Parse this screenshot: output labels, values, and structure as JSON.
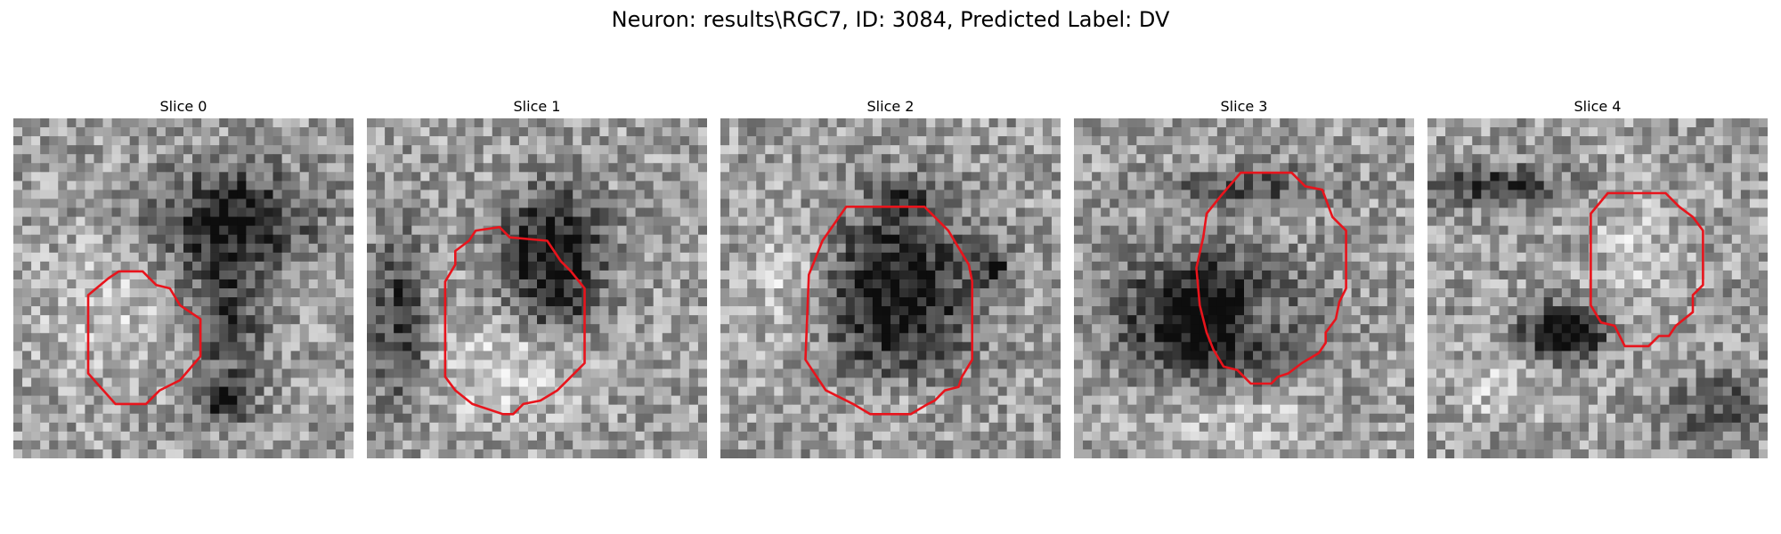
{
  "figure": {
    "title": "Neuron: results\\RGC7, ID: 3084, Predicted Label: DV"
  },
  "colors": {
    "contour": "#e8141c",
    "background": "#ffffff"
  },
  "panels": [
    {
      "title": "Slice 0",
      "seed": 11,
      "dark_blobs": [
        [
          0.65,
          0.3,
          0.22,
          0.15,
          0.55
        ],
        [
          0.62,
          0.6,
          0.12,
          0.2,
          0.35
        ],
        [
          0.63,
          0.83,
          0.07,
          0.06,
          0.5
        ]
      ],
      "light_blobs": [
        [
          0.28,
          0.58,
          0.2,
          0.2,
          0.15
        ]
      ],
      "contour": [
        [
          0.31,
          0.45
        ],
        [
          0.38,
          0.45
        ],
        [
          0.42,
          0.49
        ],
        [
          0.46,
          0.5
        ],
        [
          0.49,
          0.55
        ],
        [
          0.55,
          0.59
        ],
        [
          0.55,
          0.7
        ],
        [
          0.49,
          0.77
        ],
        [
          0.43,
          0.8
        ],
        [
          0.39,
          0.84
        ],
        [
          0.3,
          0.84
        ],
        [
          0.22,
          0.75
        ],
        [
          0.22,
          0.52
        ],
        [
          0.28,
          0.47
        ]
      ]
    },
    {
      "title": "Slice 1",
      "seed": 23,
      "dark_blobs": [
        [
          0.55,
          0.38,
          0.15,
          0.16,
          0.6
        ],
        [
          0.1,
          0.6,
          0.08,
          0.25,
          0.4
        ],
        [
          0.55,
          0.55,
          0.1,
          0.08,
          0.3
        ]
      ],
      "light_blobs": [
        [
          0.4,
          0.75,
          0.2,
          0.15,
          0.2
        ]
      ],
      "contour": [
        [
          0.32,
          0.33
        ],
        [
          0.39,
          0.32
        ],
        [
          0.42,
          0.35
        ],
        [
          0.53,
          0.36
        ],
        [
          0.57,
          0.42
        ],
        [
          0.6,
          0.45
        ],
        [
          0.64,
          0.5
        ],
        [
          0.64,
          0.72
        ],
        [
          0.56,
          0.8
        ],
        [
          0.51,
          0.83
        ],
        [
          0.46,
          0.84
        ],
        [
          0.43,
          0.87
        ],
        [
          0.4,
          0.87
        ],
        [
          0.31,
          0.84
        ],
        [
          0.26,
          0.8
        ],
        [
          0.23,
          0.76
        ],
        [
          0.23,
          0.48
        ],
        [
          0.26,
          0.43
        ],
        [
          0.26,
          0.39
        ],
        [
          0.3,
          0.36
        ]
      ]
    },
    {
      "title": "Slice 2",
      "seed": 37,
      "dark_blobs": [
        [
          0.52,
          0.52,
          0.22,
          0.24,
          0.6
        ],
        [
          0.8,
          0.43,
          0.05,
          0.05,
          0.4
        ],
        [
          0.56,
          0.23,
          0.1,
          0.06,
          0.3
        ]
      ],
      "light_blobs": [
        [
          0.2,
          0.5,
          0.12,
          0.2,
          0.2
        ],
        [
          0.5,
          0.83,
          0.15,
          0.06,
          0.2
        ]
      ],
      "contour": [
        [
          0.37,
          0.26
        ],
        [
          0.6,
          0.26
        ],
        [
          0.63,
          0.29
        ],
        [
          0.67,
          0.33
        ],
        [
          0.7,
          0.38
        ],
        [
          0.73,
          0.43
        ],
        [
          0.74,
          0.48
        ],
        [
          0.74,
          0.71
        ],
        [
          0.71,
          0.76
        ],
        [
          0.7,
          0.79
        ],
        [
          0.66,
          0.8
        ],
        [
          0.63,
          0.83
        ],
        [
          0.61,
          0.84
        ],
        [
          0.56,
          0.87
        ],
        [
          0.44,
          0.87
        ],
        [
          0.39,
          0.84
        ],
        [
          0.31,
          0.8
        ],
        [
          0.27,
          0.74
        ],
        [
          0.25,
          0.71
        ],
        [
          0.26,
          0.46
        ],
        [
          0.28,
          0.41
        ],
        [
          0.3,
          0.36
        ]
      ]
    },
    {
      "title": "Slice 3",
      "seed": 53,
      "dark_blobs": [
        [
          0.4,
          0.58,
          0.25,
          0.17,
          0.7
        ],
        [
          0.52,
          0.2,
          0.25,
          0.06,
          0.3
        ],
        [
          0.55,
          0.58,
          0.07,
          0.07,
          -0.35
        ]
      ],
      "light_blobs": [
        [
          0.5,
          0.88,
          0.25,
          0.08,
          0.15
        ]
      ],
      "contour": [
        [
          0.49,
          0.16
        ],
        [
          0.64,
          0.16
        ],
        [
          0.68,
          0.2
        ],
        [
          0.73,
          0.21
        ],
        [
          0.76,
          0.29
        ],
        [
          0.8,
          0.33
        ],
        [
          0.8,
          0.5
        ],
        [
          0.78,
          0.54
        ],
        [
          0.77,
          0.59
        ],
        [
          0.74,
          0.63
        ],
        [
          0.74,
          0.66
        ],
        [
          0.72,
          0.69
        ],
        [
          0.67,
          0.72
        ],
        [
          0.63,
          0.75
        ],
        [
          0.6,
          0.76
        ],
        [
          0.58,
          0.78
        ],
        [
          0.52,
          0.78
        ],
        [
          0.48,
          0.74
        ],
        [
          0.44,
          0.73
        ],
        [
          0.41,
          0.68
        ],
        [
          0.39,
          0.63
        ],
        [
          0.37,
          0.55
        ],
        [
          0.36,
          0.44
        ],
        [
          0.38,
          0.35
        ],
        [
          0.39,
          0.28
        ],
        [
          0.43,
          0.23
        ]
      ]
    },
    {
      "title": "Slice 4",
      "seed": 71,
      "dark_blobs": [
        [
          0.4,
          0.63,
          0.12,
          0.08,
          0.7
        ],
        [
          0.2,
          0.2,
          0.2,
          0.06,
          0.4
        ],
        [
          0.85,
          0.85,
          0.15,
          0.1,
          0.3
        ]
      ],
      "light_blobs": [
        [
          0.6,
          0.4,
          0.12,
          0.2,
          0.15
        ],
        [
          0.25,
          0.8,
          0.2,
          0.1,
          0.15
        ]
      ],
      "contour": [
        [
          0.53,
          0.22
        ],
        [
          0.7,
          0.22
        ],
        [
          0.74,
          0.26
        ],
        [
          0.78,
          0.29
        ],
        [
          0.81,
          0.33
        ],
        [
          0.81,
          0.49
        ],
        [
          0.78,
          0.52
        ],
        [
          0.78,
          0.57
        ],
        [
          0.73,
          0.61
        ],
        [
          0.71,
          0.64
        ],
        [
          0.68,
          0.64
        ],
        [
          0.65,
          0.67
        ],
        [
          0.58,
          0.67
        ],
        [
          0.55,
          0.61
        ],
        [
          0.51,
          0.6
        ],
        [
          0.48,
          0.55
        ],
        [
          0.48,
          0.28
        ]
      ]
    }
  ]
}
